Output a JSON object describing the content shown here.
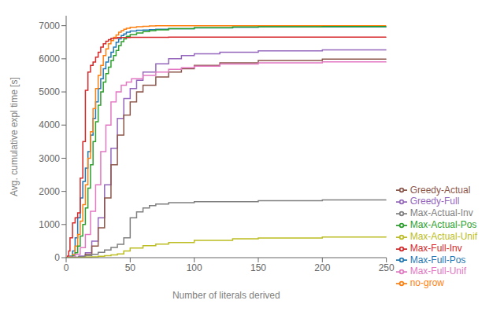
{
  "chart_data": {
    "type": "line",
    "xlabel": "Number of literals derived",
    "ylabel": "Avg. cumulative expl time [s]",
    "xlim": [
      0,
      250
    ],
    "ylim": [
      0,
      7300
    ],
    "xticks": [
      0,
      50,
      100,
      150,
      200,
      250
    ],
    "yticks": [
      0,
      1000,
      2000,
      3000,
      4000,
      5000,
      6000,
      7000
    ],
    "line_style": "steps",
    "legend": "lower right",
    "grid": false,
    "series": [
      {
        "name": "Max-Full-Pos",
        "color": "#1f77b4",
        "x": [
          0,
          1,
          3,
          5,
          7,
          9,
          11,
          13,
          15,
          17,
          19,
          21,
          23,
          25,
          27,
          29,
          31,
          33,
          35,
          37,
          39,
          41,
          43,
          45,
          47,
          50,
          55,
          60,
          65,
          70,
          80,
          100,
          130,
          150,
          200,
          250
        ],
        "values": [
          0,
          0,
          50,
          200,
          600,
          1200,
          1800,
          2300,
          2700,
          3200,
          3700,
          4200,
          4700,
          5100,
          5400,
          5700,
          5900,
          6050,
          6200,
          6350,
          6500,
          6600,
          6700,
          6750,
          6800,
          6840,
          6860,
          6870,
          6880,
          6890,
          6910,
          6930,
          6950,
          6960,
          6965,
          6970
        ]
      },
      {
        "name": "no-grow",
        "color": "#ff7f0e",
        "x": [
          0,
          1,
          3,
          5,
          7,
          9,
          11,
          13,
          15,
          17,
          19,
          21,
          23,
          25,
          27,
          29,
          31,
          33,
          35,
          37,
          39,
          41,
          43,
          45,
          47,
          50,
          55,
          60,
          65,
          70,
          80,
          100,
          130,
          150,
          200,
          250
        ],
        "values": [
          0,
          0,
          30,
          100,
          350,
          700,
          1100,
          1600,
          2200,
          3000,
          3800,
          4500,
          5100,
          5500,
          5800,
          6100,
          6300,
          6450,
          6550,
          6650,
          6720,
          6800,
          6850,
          6890,
          6920,
          6950,
          6970,
          6980,
          6990,
          6995,
          6998,
          7000,
          7000,
          7000,
          7000,
          7000
        ]
      },
      {
        "name": "Max-Actual-Pos",
        "color": "#2ca02c",
        "x": [
          0,
          1,
          3,
          5,
          7,
          9,
          11,
          13,
          15,
          17,
          19,
          21,
          23,
          25,
          27,
          29,
          31,
          33,
          35,
          37,
          39,
          41,
          43,
          45,
          47,
          50,
          55,
          60,
          65,
          70,
          80,
          100,
          130,
          150,
          200,
          250
        ],
        "values": [
          0,
          0,
          20,
          60,
          150,
          350,
          650,
          1000,
          1500,
          2100,
          2800,
          3500,
          4100,
          4600,
          5000,
          5300,
          5550,
          5750,
          5950,
          6100,
          6250,
          6400,
          6520,
          6600,
          6680,
          6730,
          6780,
          6820,
          6850,
          6875,
          6910,
          6940,
          6960,
          6968,
          6975,
          6980
        ]
      },
      {
        "name": "Max-Full-Inv",
        "color": "#d62728",
        "x": [
          0,
          1,
          2,
          3,
          5,
          7,
          9,
          11,
          13,
          15,
          17,
          19,
          21,
          23,
          25,
          27,
          29,
          31,
          33,
          35,
          40,
          45,
          50,
          60,
          80,
          100,
          150,
          200,
          250
        ],
        "values": [
          0,
          50,
          200,
          600,
          1050,
          1200,
          1350,
          2400,
          3500,
          5050,
          5600,
          5800,
          5900,
          6050,
          6200,
          6350,
          6450,
          6530,
          6580,
          6620,
          6640,
          6645,
          6648,
          6650,
          6652,
          6654,
          6656,
          6657,
          6658
        ]
      },
      {
        "name": "Greedy-Full",
        "color": "#9467bd",
        "x": [
          0,
          5,
          10,
          15,
          20,
          25,
          30,
          35,
          40,
          45,
          50,
          55,
          60,
          70,
          80,
          90,
          100,
          120,
          150,
          200,
          250
        ],
        "values": [
          0,
          10,
          50,
          150,
          500,
          1200,
          2200,
          3300,
          4200,
          4800,
          5100,
          5350,
          5600,
          5850,
          6000,
          6100,
          6150,
          6200,
          6240,
          6270,
          6280
        ]
      },
      {
        "name": "Greedy-Actual",
        "color": "#8c564b",
        "x": [
          0,
          5,
          10,
          15,
          20,
          25,
          30,
          35,
          40,
          45,
          50,
          55,
          60,
          70,
          80,
          90,
          100,
          120,
          150,
          200,
          250
        ],
        "values": [
          0,
          5,
          30,
          100,
          350,
          900,
          1800,
          2800,
          3700,
          4300,
          4700,
          5000,
          5200,
          5450,
          5600,
          5700,
          5800,
          5880,
          5950,
          5990,
          6000
        ]
      },
      {
        "name": "Max-Full-Unif",
        "color": "#e377c2",
        "x": [
          0,
          3,
          7,
          11,
          15,
          19,
          23,
          27,
          31,
          35,
          39,
          43,
          47,
          51,
          60,
          70,
          80,
          90,
          100,
          120,
          150,
          200,
          250
        ],
        "values": [
          0,
          20,
          100,
          300,
          700,
          1400,
          2200,
          3200,
          4000,
          4700,
          5000,
          5200,
          5300,
          5400,
          5500,
          5600,
          5680,
          5730,
          5780,
          5840,
          5880,
          5910,
          5920
        ]
      },
      {
        "name": "Max-Actual-Inv",
        "color": "#7f7f7f",
        "x": [
          0,
          5,
          10,
          15,
          20,
          25,
          30,
          35,
          40,
          45,
          50,
          55,
          60,
          65,
          70,
          80,
          100,
          150,
          200,
          250
        ],
        "values": [
          0,
          10,
          30,
          60,
          100,
          160,
          230,
          310,
          400,
          600,
          1200,
          1380,
          1500,
          1570,
          1620,
          1660,
          1690,
          1720,
          1740,
          1750
        ]
      },
      {
        "name": "Max-Actual-Unif",
        "color": "#bcbd22",
        "x": [
          0,
          5,
          10,
          15,
          20,
          25,
          30,
          35,
          40,
          45,
          50,
          60,
          70,
          80,
          100,
          130,
          150,
          200,
          250
        ],
        "values": [
          0,
          2,
          8,
          15,
          25,
          40,
          60,
          85,
          115,
          200,
          290,
          360,
          410,
          455,
          520,
          570,
          590,
          625,
          645
        ]
      }
    ]
  }
}
